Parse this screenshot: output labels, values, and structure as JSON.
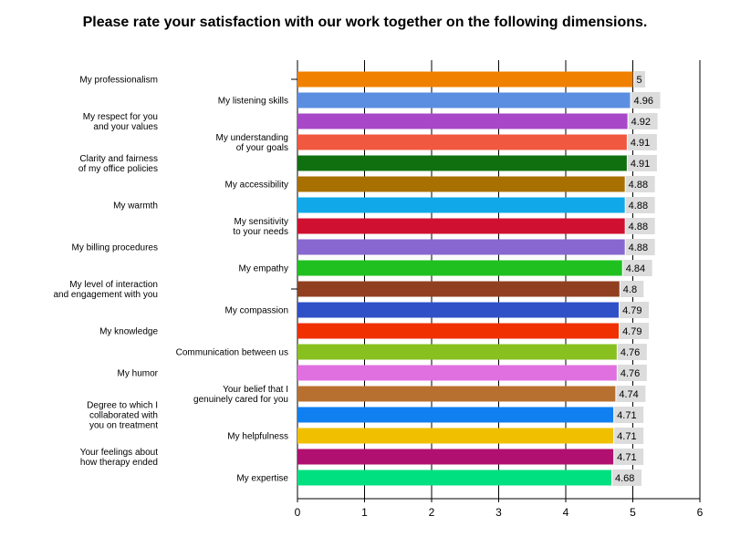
{
  "chart_data": {
    "type": "bar",
    "orientation": "horizontal",
    "title": "Please rate your satisfaction with our work together on the following dimensions.",
    "xlim": [
      0,
      6
    ],
    "x_ticks": [
      "0",
      "1",
      "2",
      "3",
      "4",
      "5",
      "6"
    ],
    "grid": "vertical",
    "legend": "none",
    "categories": [
      "My professionalism",
      "My listening skills",
      "My respect for you\nand your values",
      "My understanding\nof your goals",
      "Clarity and fairness\nof my office policies",
      "My accessibility",
      "My warmth",
      "My sensitivity\nto your needs",
      "My billing procedures",
      "My empathy",
      "My level of interaction\nand engagement with you",
      "My compassion",
      "My knowledge",
      "Communication between us",
      "My humor",
      "Your belief that I\ngenuinely cared for you",
      "Degree to which I\ncollaborated with\nyou on treatment",
      "My helpfulness",
      "Your feelings about\nhow therapy ended",
      "My expertise"
    ],
    "values": [
      5,
      4.96,
      4.92,
      4.91,
      4.91,
      4.88,
      4.88,
      4.88,
      4.88,
      4.84,
      4.8,
      4.79,
      4.79,
      4.76,
      4.76,
      4.74,
      4.71,
      4.71,
      4.71,
      4.68
    ],
    "value_labels": [
      "5",
      "4.96",
      "4.92",
      "4.91",
      "4.91",
      "4.88",
      "4.88",
      "4.88",
      "4.88",
      "4.84",
      "4.8",
      "4.79",
      "4.79",
      "4.76",
      "4.76",
      "4.74",
      "4.71",
      "4.71",
      "4.71",
      "4.68"
    ],
    "colors": [
      "#f08000",
      "#5b8ee0",
      "#a848c8",
      "#f05840",
      "#107010",
      "#a87000",
      "#10a8e8",
      "#d01030",
      "#8868d0",
      "#20c020",
      "#904020",
      "#3050c8",
      "#f03000",
      "#88c020",
      "#e070e0",
      "#b87030",
      "#1080f0",
      "#f0c000",
      "#b01070",
      "#00e080"
    ]
  }
}
